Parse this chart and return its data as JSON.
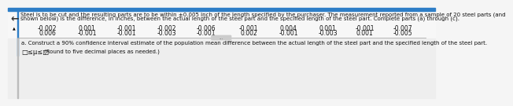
{
  "title_line1": "Steel is to be cut and the resulting parts are to be within ±0.005 inch of the length specified by the purchaser. The measurement reported from a sample of 20 steel parts (and",
  "title_line2": "shown below) is the difference, in inches, between the actual length of the steel part and the specified length of the steel part. Complete parts (a) through (c).",
  "row1": [
    "-0.002",
    "0.001",
    "-0.001",
    "-0.002",
    "-0.006",
    "-0.001",
    "0.004",
    "0.001",
    "-0.001",
    "-0.007"
  ],
  "row2": [
    "0.006",
    "-0.001",
    "-0.001",
    "-0.003",
    "-0.001",
    "0.002",
    "-0.001",
    "-0.003",
    "0.001",
    "-0.005"
  ],
  "question_text": "a. Construct a 90% confidence interval estimate of the population mean difference between the actual length of the steel part and the specified length of the steel part.",
  "answer_prefix": "□≤μ≤□",
  "answer_suffix": "(Round to five decimal places as needed.)",
  "bg_color_top_blue": "#2e7ec7",
  "bg_color_white": "#f5f5f5",
  "bg_color_lower": "#e8e8e8",
  "text_color": "#111111",
  "separator_color": "#aaaaaa",
  "left_bar_color": "#888888"
}
